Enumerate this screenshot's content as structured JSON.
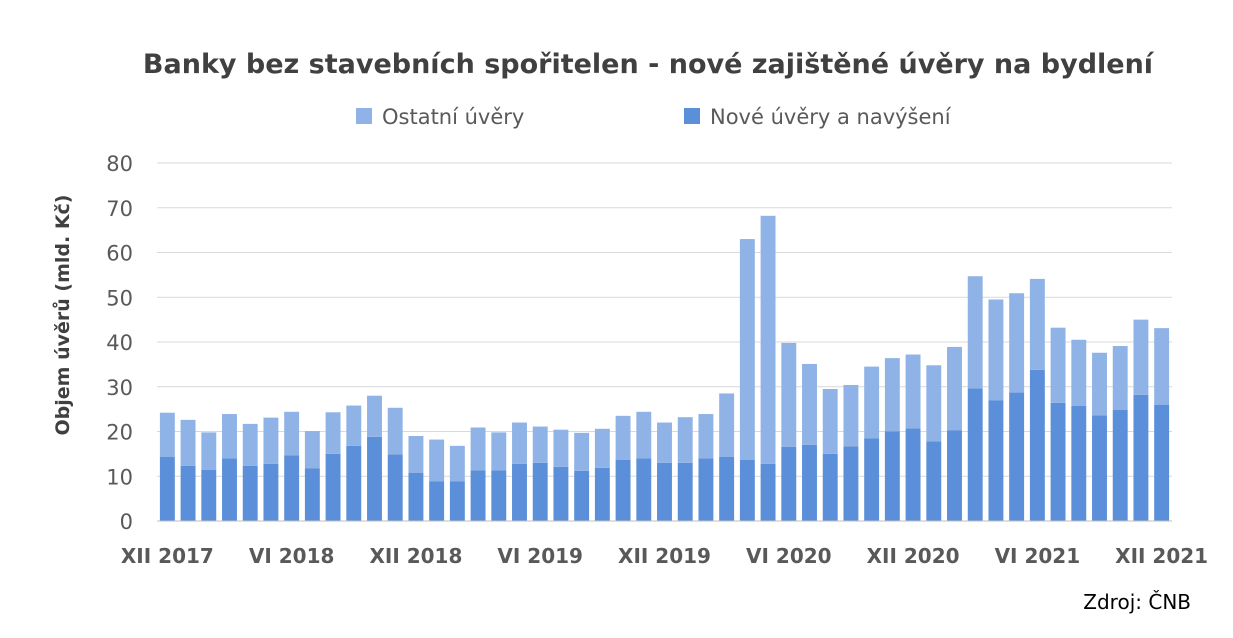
{
  "chart_data": {
    "type": "bar",
    "stacked": true,
    "title": "Banky bez stavebních spořitelen - nové zajištěné úvěry na bydlení",
    "xlabel": "",
    "ylabel": "Objem úvěrů (mld. Kč)",
    "ylim": [
      0,
      80
    ],
    "yticks": [
      "0",
      "10",
      "20",
      "30",
      "40",
      "50",
      "60",
      "70",
      "80"
    ],
    "grid": true,
    "legend_position": "top",
    "xtick_labels": [
      {
        "index": 0,
        "label": "XII 2017"
      },
      {
        "index": 6,
        "label": "VI 2018"
      },
      {
        "index": 12,
        "label": "XII 2018"
      },
      {
        "index": 18,
        "label": "VI 2019"
      },
      {
        "index": 24,
        "label": "XII 2019"
      },
      {
        "index": 30,
        "label": "VI 2020"
      },
      {
        "index": 36,
        "label": "XII 2020"
      },
      {
        "index": 42,
        "label": "VI 2021"
      },
      {
        "index": 48,
        "label": "XII 2021"
      }
    ],
    "categories": [
      "XII 2017",
      "I 2018",
      "II 2018",
      "III 2018",
      "IV 2018",
      "V 2018",
      "VI 2018",
      "VII 2018",
      "VIII 2018",
      "IX 2018",
      "X 2018",
      "XI 2018",
      "XII 2018",
      "I 2019",
      "II 2019",
      "III 2019",
      "IV 2019",
      "V 2019",
      "VI 2019",
      "VII 2019",
      "VIII 2019",
      "IX 2019",
      "X 2019",
      "XI 2019",
      "XII 2019",
      "I 2020",
      "II 2020",
      "III 2020",
      "IV 2020",
      "V 2020",
      "VI 2020",
      "VII 2020",
      "VIII 2020",
      "IX 2020",
      "X 2020",
      "XI 2020",
      "XII 2020",
      "I 2021",
      "II 2021",
      "III 2021",
      "IV 2021",
      "V 2021",
      "VI 2021",
      "VII 2021",
      "VIII 2021",
      "IX 2021",
      "X 2021",
      "XI 2021",
      "XII 2021"
    ],
    "series": [
      {
        "name": "Nové úvěry a navýšení",
        "color": "#5b8fd9",
        "values": [
          14.3,
          12.3,
          11.4,
          14.0,
          12.3,
          12.8,
          14.7,
          11.8,
          15.0,
          16.8,
          18.8,
          14.9,
          10.8,
          8.9,
          8.9,
          11.3,
          11.3,
          12.8,
          13.0,
          12.1,
          11.2,
          11.9,
          13.7,
          14.0,
          13.0,
          13.0,
          14.0,
          14.3,
          13.7,
          12.8,
          16.6,
          17.0,
          15.0,
          16.7,
          18.5,
          20.0,
          20.7,
          17.8,
          20.3,
          29.6,
          27.0,
          28.7,
          33.8,
          26.4,
          25.7,
          23.6,
          24.8,
          28.2,
          26.0
        ]
      },
      {
        "name": "Ostatní úvěry",
        "color": "#8fb3e6",
        "values": [
          9.9,
          10.3,
          8.4,
          9.9,
          9.4,
          10.3,
          9.7,
          8.3,
          9.3,
          9.0,
          9.2,
          10.4,
          8.2,
          9.3,
          7.9,
          9.6,
          8.5,
          9.2,
          8.1,
          8.3,
          8.5,
          8.7,
          9.8,
          10.4,
          9.0,
          10.2,
          9.9,
          14.2,
          49.3,
          55.4,
          23.2,
          18.1,
          14.5,
          13.7,
          16.0,
          16.4,
          16.5,
          17.0,
          18.6,
          25.1,
          22.5,
          22.2,
          20.3,
          16.8,
          14.8,
          14.0,
          14.3,
          16.8,
          17.1
        ]
      }
    ],
    "source": "Zdroj: ČNB"
  }
}
